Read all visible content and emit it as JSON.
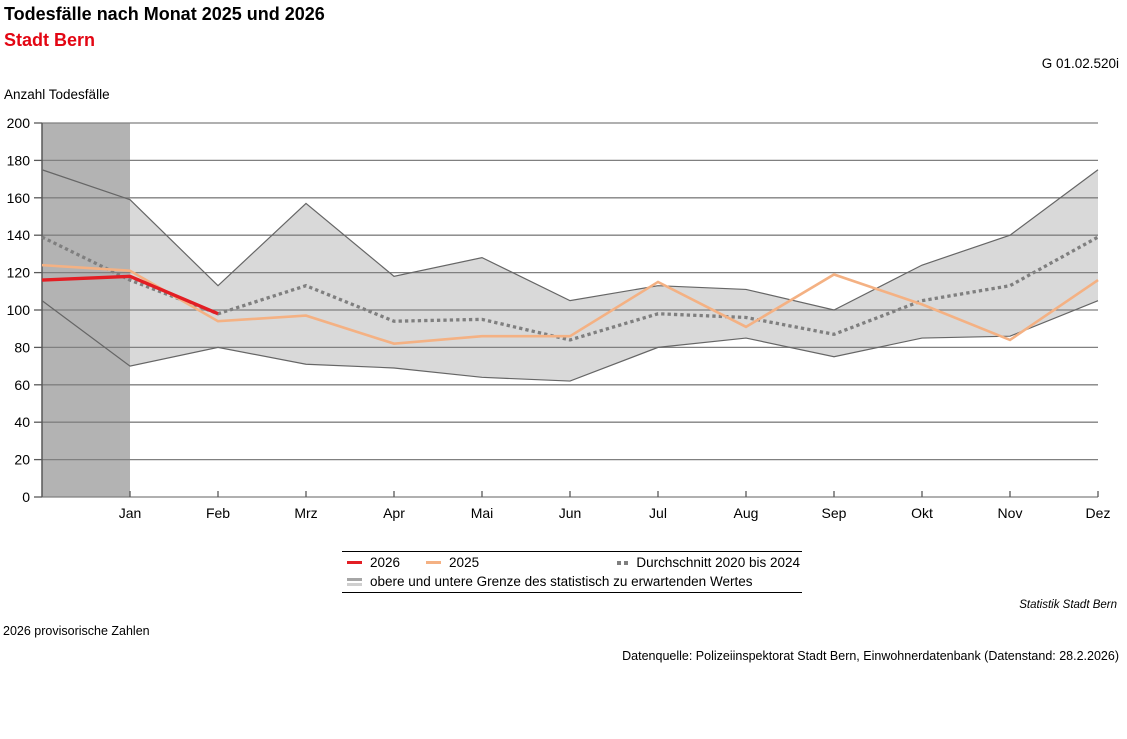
{
  "header": {
    "title": "Todesfälle nach Monat 2025 und 2026",
    "subtitle": "Stadt Bern",
    "graph_id": "G 01.02.520i"
  },
  "chart_data": {
    "type": "line",
    "title": "Todesfälle nach Monat 2025 und 2026",
    "subtitle": "Stadt Bern",
    "ylabel": "Anzahl Todesfälle",
    "xlabel": "",
    "ylim": [
      0,
      200
    ],
    "ytick_step": 20,
    "grid": true,
    "grid_color": "#808080",
    "axis_color": "#595959",
    "legend_position": "bottom",
    "starts_at_axis": true,
    "x_categories": [
      "Jan",
      "Feb",
      "Mrz",
      "Apr",
      "Mai",
      "Jun",
      "Jul",
      "Aug",
      "Sep",
      "Okt",
      "Nov",
      "Dez"
    ],
    "series": [
      {
        "name": "2026",
        "color": "#e31e24",
        "width": 3.4,
        "style": "solid",
        "values": [
          116,
          118,
          98
        ]
      },
      {
        "name": "2025",
        "color": "#f4b183",
        "width": 2.6,
        "style": "solid",
        "values": [
          124,
          121,
          94,
          97,
          82,
          86,
          86,
          115,
          91,
          119,
          103,
          84,
          116
        ]
      },
      {
        "name": "Durchschnitt 2020 bis 2024",
        "color": "#7f7f7f",
        "width": 3.3,
        "style": "dotted",
        "values": [
          139,
          116,
          98,
          113,
          94,
          95,
          84,
          98,
          96,
          87,
          105,
          113,
          139
        ]
      }
    ],
    "band": {
      "name": "obere und untere Grenze des statistisch zu erwartenden Wertes",
      "fill": "#d9d9d9",
      "edge_color": "#666666",
      "upper": [
        175,
        159,
        113,
        157,
        118,
        128,
        105,
        113,
        111,
        100,
        124,
        140,
        175
      ],
      "lower": [
        105,
        70,
        80,
        71,
        69,
        64,
        62,
        80,
        85,
        75,
        85,
        86,
        105
      ]
    },
    "highlight": {
      "fill": "#b3b3b3",
      "from": 0,
      "to": 1
    }
  },
  "footer": {
    "note": "2026 provisorische Zahlen",
    "brand": "Statistik Stadt Bern",
    "source": "Datenquelle: Polizeiinspektorat Stadt Bern, Einwohnerdatenbank (Datenstand: 28.2.2026)"
  }
}
